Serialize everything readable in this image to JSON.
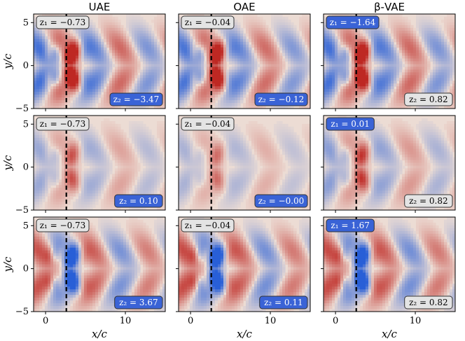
{
  "chart_data": {
    "type": "heatmap",
    "columns": [
      "UAE",
      "OAE",
      "β-VAE"
    ],
    "xlabel": "x/c",
    "ylabel": "y/c",
    "xticks": [
      0,
      10
    ],
    "yticks": [
      5,
      0,
      -5
    ],
    "xlim": [
      -1.5,
      15
    ],
    "ylim": [
      -5,
      6
    ],
    "dashed_line_x": 2.6,
    "rows": [
      [
        {
          "z1": "z₁ = −0.73",
          "z2": "z₂ = −3.47",
          "z1_hl": false,
          "z2_hl": true,
          "amp": 1.0
        },
        {
          "z1": "z₁ = −0.04",
          "z2": "z₂ = −0.12",
          "z1_hl": false,
          "z2_hl": true,
          "amp": 0.95
        },
        {
          "z1": "z₁ = −1.64",
          "z2": "z₂ = 0.82",
          "z1_hl": true,
          "z2_hl": false,
          "amp": 1.0
        }
      ],
      [
        {
          "z1": "z₁ = −0.73",
          "z2": "z₂ = 0.10",
          "z1_hl": false,
          "z2_hl": true,
          "amp": 0.45
        },
        {
          "z1": "z₁ = −0.04",
          "z2": "z₂ = −0.00",
          "z1_hl": false,
          "z2_hl": true,
          "amp": 0.35
        },
        {
          "z1": "z₁ = 0.01",
          "z2": "z₂ = 0.82",
          "z1_hl": true,
          "z2_hl": false,
          "amp": 0.55
        }
      ],
      [
        {
          "z1": "z₁ = −0.73",
          "z2": "z₂ = 3.67",
          "z1_hl": false,
          "z2_hl": true,
          "amp": 0.9
        },
        {
          "z1": "z₁ = −0.04",
          "z2": "z₂ = 0.11",
          "z1_hl": false,
          "z2_hl": true,
          "amp": 0.95
        },
        {
          "z1": "z₁ = 1.67",
          "z2": "z₂ = 0.82",
          "z1_hl": true,
          "z2_hl": false,
          "amp": 0.95
        }
      ]
    ],
    "colors": {
      "highlight": "#3a63d6",
      "neutral": "#e4e4e4",
      "positive": "#c0392b",
      "negative": "#2f6bd8",
      "background": "#ecdcd4"
    }
  }
}
